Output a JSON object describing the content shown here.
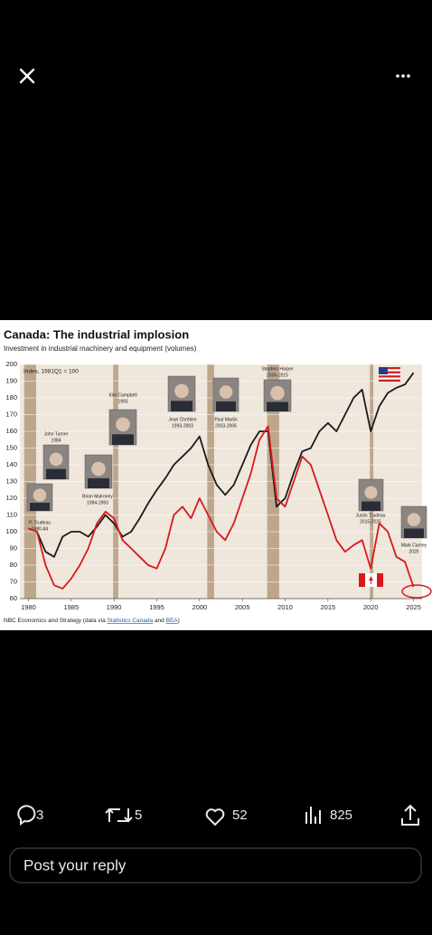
{
  "chart": {
    "title": "Canada: The industrial implosion",
    "subtitle": "Investment in industrial machinery and equipment (volumes)",
    "index_note": "Index, 1981Q1 = 100",
    "x": [
      1980,
      1981,
      1982,
      1983,
      1984,
      1985,
      1986,
      1987,
      1988,
      1989,
      1990,
      1991,
      1992,
      1993,
      1994,
      1995,
      1996,
      1997,
      1998,
      1999,
      2000,
      2001,
      2002,
      2003,
      2004,
      2005,
      2006,
      2007,
      2008,
      2009,
      2010,
      2011,
      2012,
      2013,
      2014,
      2015,
      2016,
      2017,
      2018,
      2019,
      2020,
      2021,
      2022,
      2023,
      2024,
      2025
    ],
    "series": [
      {
        "color": "#1a1a1a",
        "values": [
          102,
          100,
          88,
          85,
          97,
          100,
          100,
          97,
          103,
          110,
          105,
          97,
          100,
          108,
          117,
          125,
          132,
          140,
          145,
          150,
          157,
          140,
          128,
          122,
          128,
          140,
          152,
          160,
          160,
          115,
          120,
          135,
          148,
          150,
          160,
          165,
          160,
          170,
          180,
          185,
          160,
          175,
          183,
          186,
          188,
          195
        ]
      },
      {
        "color": "#d7191c",
        "values": [
          102,
          100,
          80,
          68,
          66,
          72,
          80,
          90,
          105,
          112,
          108,
          95,
          90,
          85,
          80,
          78,
          90,
          110,
          115,
          108,
          120,
          110,
          100,
          95,
          105,
          120,
          135,
          155,
          163,
          120,
          115,
          130,
          145,
          140,
          125,
          110,
          95,
          88,
          92,
          95,
          78,
          105,
          100,
          85,
          82,
          67
        ]
      }
    ],
    "shaded_periods": [
      [
        1979.5,
        1980.9
      ],
      [
        1989.9,
        1990.5
      ],
      [
        2000.9,
        2001.7
      ],
      [
        2007.9,
        2009.3
      ],
      [
        2019.9,
        2020.3
      ]
    ],
    "shade_color": "#b59a7e",
    "xlim": [
      1979,
      2026
    ],
    "xticks": [
      1980,
      1985,
      1990,
      1995,
      2000,
      2005,
      2010,
      2015,
      2020,
      2025
    ],
    "ylim": [
      60,
      200
    ],
    "yticks": [
      60,
      70,
      80,
      90,
      100,
      110,
      120,
      130,
      140,
      150,
      160,
      170,
      180,
      190,
      200
    ],
    "annotations": [
      {
        "name": "P. Trudeau",
        "term": "1980-84"
      },
      {
        "name": "John Turner",
        "term": "1984"
      },
      {
        "name": "Brian Mulroney",
        "term": "1984-1993"
      },
      {
        "name": "Kim Campbell",
        "term": "1993"
      },
      {
        "name": "Jean Chrétien",
        "term": "1993-2003"
      },
      {
        "name": "Paul Martin",
        "term": "2003-2006"
      },
      {
        "name": "Stephen Harper",
        "term": "2006-2015"
      },
      {
        "name": "Justin Trudeau",
        "term": "2015-2025"
      },
      {
        "name": "Mark Carney",
        "term": "2025"
      }
    ],
    "source": {
      "prefix": "NBC Economics and Strategy (data via",
      "link1": "Statistics Canada",
      "joiner": "and",
      "link2": "BEA",
      "suffix": ")"
    }
  },
  "actions": {
    "replies": 3,
    "reposts": 5,
    "likes": 52,
    "views": 825
  },
  "reply_placeholder": "Post your reply"
}
